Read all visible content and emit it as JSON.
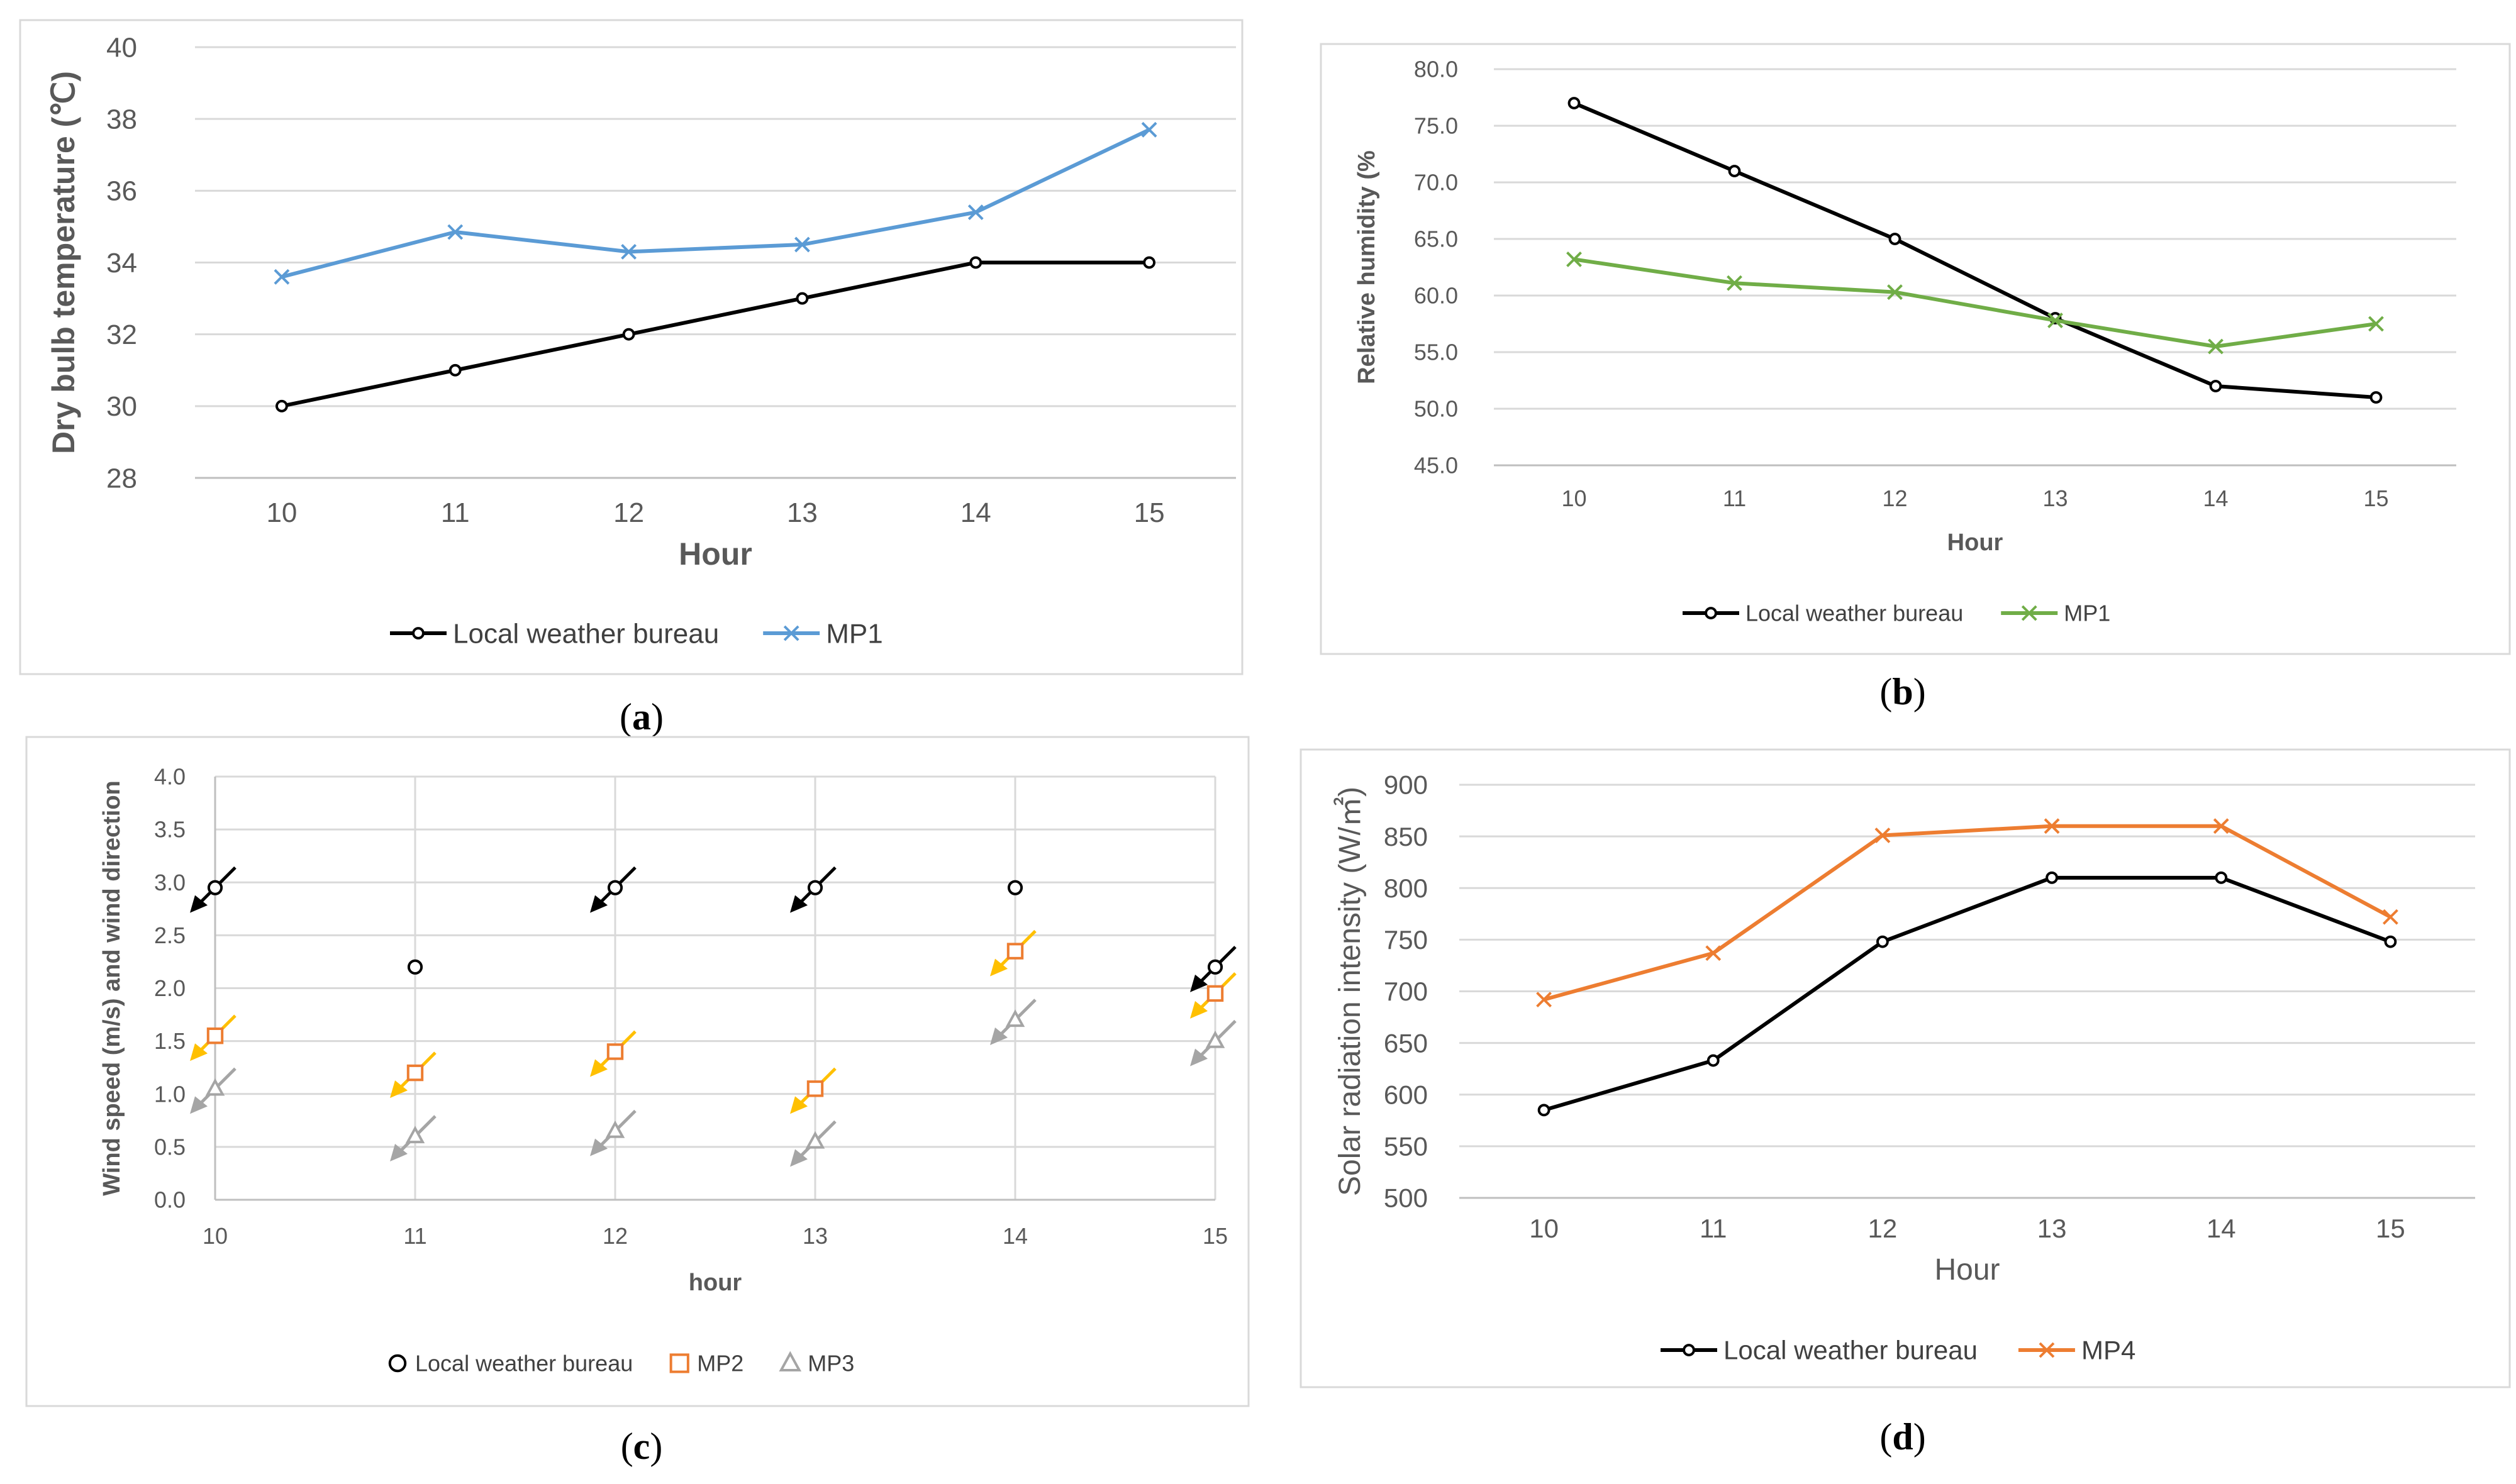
{
  "chart_data": [
    {
      "id": "a",
      "type": "line",
      "caption": "a",
      "title": "",
      "x": [
        "10",
        "11",
        "12",
        "13",
        "14",
        "15"
      ],
      "xlabel": "Hour",
      "ylabel": "Dry bulb temperature  (℃)",
      "ylim": [
        28,
        40
      ],
      "yticks": [
        "28",
        "30",
        "32",
        "34",
        "36",
        "38",
        "40"
      ],
      "grid": true,
      "legend": "bottom",
      "series": [
        {
          "name": "Local weather bureau",
          "values": [
            30,
            31,
            32,
            33,
            34,
            34
          ],
          "color": "#000000",
          "marker": "circle"
        },
        {
          "name": "MP1",
          "values": [
            33.6,
            34.85,
            34.3,
            34.5,
            35.4,
            37.7
          ],
          "color": "#5b9bd5",
          "marker": "x"
        }
      ]
    },
    {
      "id": "b",
      "type": "line",
      "caption": "b",
      "title": "",
      "x": [
        "10",
        "11",
        "12",
        "13",
        "14",
        "15"
      ],
      "xlabel": "Hour",
      "ylabel": "Relative humidity  (%",
      "ylim": [
        45,
        80
      ],
      "yticks": [
        "45.0",
        "50.0",
        "55.0",
        "60.0",
        "65.0",
        "70.0",
        "75.0",
        "80.0"
      ],
      "grid": true,
      "legend": "bottom",
      "series": [
        {
          "name": "Local weather bureau",
          "values": [
            77,
            71,
            65,
            58,
            52,
            51
          ],
          "color": "#000000",
          "marker": "circle"
        },
        {
          "name": "MP1",
          "values": [
            63.2,
            61.1,
            60.3,
            57.8,
            55.5,
            57.5
          ],
          "color": "#70ad47",
          "marker": "x"
        }
      ]
    },
    {
      "id": "c",
      "type": "scatter",
      "caption": "c",
      "title": "",
      "x": [
        "10",
        "11",
        "12",
        "13",
        "14",
        "15"
      ],
      "xlabel": "hour",
      "ylabel": "Wind speed  (m/s)  and wind direction",
      "ylim": [
        0,
        4
      ],
      "yticks": [
        "0.0",
        "0.5",
        "1.0",
        "1.5",
        "2.0",
        "2.5",
        "3.0",
        "3.5",
        "4.0"
      ],
      "grid": true,
      "legend": "bottom",
      "series": [
        {
          "name": "Local weather bureau",
          "values": [
            2.95,
            2.2,
            2.95,
            2.95,
            2.95,
            2.2
          ],
          "arrows": [
            true,
            false,
            true,
            true,
            false,
            true
          ],
          "color": "#000000",
          "arrow_color": "#000000",
          "marker": "circle"
        },
        {
          "name": "MP2",
          "values": [
            1.55,
            1.2,
            1.4,
            1.05,
            2.35,
            1.95
          ],
          "arrows": [
            true,
            true,
            true,
            true,
            true,
            true
          ],
          "color": "#ed7d31",
          "arrow_color": "#ffc000",
          "marker": "square"
        },
        {
          "name": "MP3",
          "values": [
            1.05,
            0.6,
            0.65,
            0.55,
            1.7,
            1.5
          ],
          "arrows": [
            true,
            true,
            true,
            true,
            true,
            true
          ],
          "color": "#a5a5a5",
          "arrow_color": "#a5a5a5",
          "marker": "triangle"
        }
      ]
    },
    {
      "id": "d",
      "type": "line",
      "caption": "d",
      "title": "",
      "x": [
        "10",
        "11",
        "12",
        "13",
        "14",
        "15"
      ],
      "xlabel": "Hour",
      "ylabel": "Solar radiation intensity  (W/㎡)",
      "ylim": [
        500,
        900
      ],
      "yticks": [
        "500",
        "550",
        "600",
        "650",
        "700",
        "750",
        "800",
        "850",
        "900"
      ],
      "grid": true,
      "legend": "bottom",
      "series": [
        {
          "name": "Local weather bureau",
          "values": [
            585,
            633,
            748,
            810,
            810,
            748
          ],
          "color": "#000000",
          "marker": "circle"
        },
        {
          "name": "MP4",
          "values": [
            692,
            737,
            851,
            860,
            860,
            772
          ],
          "color": "#ed7d31",
          "marker": "x"
        }
      ]
    }
  ]
}
